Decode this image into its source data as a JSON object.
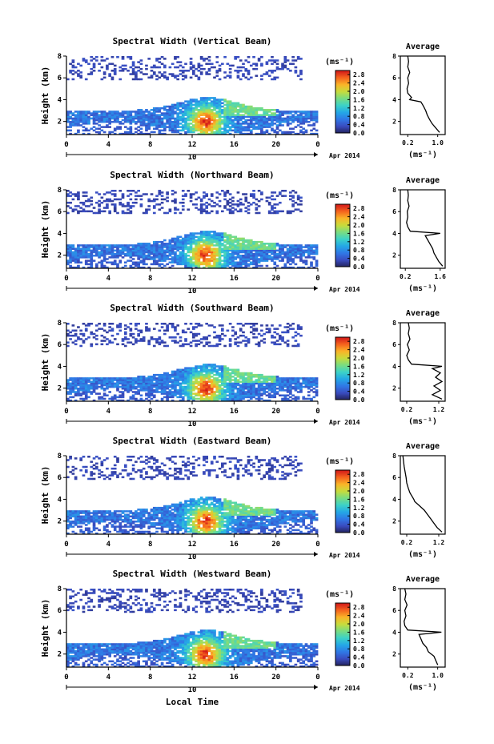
{
  "figure": {
    "date_label": "Apr 2014",
    "day_label": "10",
    "x_axis_title": "Local Time",
    "colorbar_unit": "(ms⁻¹)",
    "colorbar_ticks": [
      "0.0",
      "0.4",
      "0.8",
      "1.2",
      "1.6",
      "2.0",
      "2.4",
      "2.8"
    ],
    "average_title": "Average",
    "average_unit": "(ms⁻¹)"
  },
  "chart_data": [
    {
      "type": "heatmap",
      "title": "Spectral Width (Vertical Beam)",
      "ylabel": "Height (km)",
      "x_ticks": [
        "0",
        "4",
        "8",
        "12",
        "16",
        "20",
        "0"
      ],
      "y_ticks": [
        "2",
        "4",
        "6",
        "8"
      ],
      "xlim": [
        0,
        24
      ],
      "ylim": [
        0.8,
        8
      ],
      "colorbar_range": [
        0,
        3.0
      ],
      "average_profile": {
        "xlabel": "(ms⁻¹)",
        "x_ticks": [
          "0.2",
          "1.0"
        ],
        "y_ticks": [
          "2",
          "4",
          "6",
          "8"
        ],
        "xlim": [
          0,
          1.2
        ],
        "ylim": [
          0.8,
          8
        ],
        "height": [
          1.0,
          1.4,
          1.8,
          2.2,
          2.6,
          3.0,
          3.4,
          3.8,
          4.0,
          4.2,
          4.6,
          5.0,
          5.5,
          6.0,
          6.5,
          7.0,
          7.5,
          8.0
        ],
        "width": [
          1.05,
          0.95,
          0.85,
          0.78,
          0.72,
          0.68,
          0.62,
          0.55,
          0.25,
          0.3,
          0.2,
          0.18,
          0.22,
          0.2,
          0.25,
          0.2,
          0.22,
          0.2
        ]
      }
    },
    {
      "type": "heatmap",
      "title": "Spectral Width (Northward Beam)",
      "ylabel": "Height (km)",
      "x_ticks": [
        "0",
        "4",
        "8",
        "12",
        "16",
        "20",
        "0"
      ],
      "y_ticks": [
        "2",
        "4",
        "6",
        "8"
      ],
      "xlim": [
        0,
        24
      ],
      "ylim": [
        0.8,
        8
      ],
      "colorbar_range": [
        0,
        3.0
      ],
      "average_profile": {
        "xlabel": "(ms⁻¹)",
        "x_ticks": [
          "0.2",
          "1.6"
        ],
        "y_ticks": [
          "2",
          "4",
          "6",
          "8"
        ],
        "xlim": [
          0,
          1.8
        ],
        "ylim": [
          0.8,
          8
        ],
        "height": [
          1.0,
          1.4,
          1.8,
          2.2,
          2.6,
          3.0,
          3.4,
          3.8,
          4.0,
          4.2,
          4.6,
          5.0,
          5.5,
          6.0,
          6.5,
          7.0,
          7.5,
          8.0
        ],
        "width": [
          1.7,
          1.55,
          1.45,
          1.35,
          1.3,
          1.2,
          1.1,
          1.0,
          1.6,
          0.4,
          0.3,
          0.25,
          0.3,
          0.28,
          0.35,
          0.3,
          0.32,
          0.3
        ]
      }
    },
    {
      "type": "heatmap",
      "title": "Spectral Width (Southward Beam)",
      "ylabel": "Height (km)",
      "x_ticks": [
        "0",
        "4",
        "8",
        "12",
        "16",
        "20",
        "0"
      ],
      "y_ticks": [
        "2",
        "4",
        "6",
        "8"
      ],
      "xlim": [
        0,
        24
      ],
      "ylim": [
        0.8,
        8
      ],
      "colorbar_range": [
        0,
        3.0
      ],
      "average_profile": {
        "xlabel": "(ms⁻¹)",
        "x_ticks": [
          "0.2",
          "1.2"
        ],
        "y_ticks": [
          "2",
          "4",
          "6",
          "8"
        ],
        "xlim": [
          0,
          1.4
        ],
        "ylim": [
          0.8,
          8
        ],
        "height": [
          1.0,
          1.4,
          1.8,
          2.2,
          2.6,
          3.0,
          3.4,
          3.8,
          4.0,
          4.2,
          4.6,
          5.0,
          5.5,
          6.0,
          6.5,
          7.0,
          7.5,
          8.0
        ],
        "width": [
          1.3,
          1.0,
          1.25,
          1.05,
          1.3,
          1.1,
          1.25,
          1.0,
          1.3,
          0.35,
          0.25,
          0.2,
          0.28,
          0.22,
          0.3,
          0.25,
          0.28,
          0.25
        ]
      }
    },
    {
      "type": "heatmap",
      "title": "Spectral Width (Eastward Beam)",
      "ylabel": "Height (km)",
      "x_ticks": [
        "0",
        "4",
        "8",
        "12",
        "16",
        "20",
        "0"
      ],
      "y_ticks": [
        "2",
        "4",
        "6",
        "8"
      ],
      "xlim": [
        0,
        24
      ],
      "ylim": [
        0.8,
        8
      ],
      "colorbar_range": [
        0,
        3.0
      ],
      "average_profile": {
        "xlabel": "(ms⁻¹)",
        "x_ticks": [
          "0.2",
          "1.2"
        ],
        "y_ticks": [
          "2",
          "4",
          "6",
          "8"
        ],
        "xlim": [
          0,
          1.4
        ],
        "ylim": [
          0.8,
          8
        ],
        "height": [
          1.0,
          1.4,
          1.8,
          2.2,
          2.6,
          3.0,
          3.4,
          3.8,
          4.0,
          4.2,
          4.6,
          5.0,
          5.5,
          6.0,
          6.5,
          7.0,
          7.5,
          8.0
        ],
        "width": [
          1.3,
          1.15,
          1.05,
          0.95,
          0.85,
          0.75,
          0.6,
          0.45,
          0.42,
          0.38,
          0.3,
          0.25,
          0.2,
          0.18,
          0.15,
          0.12,
          0.1,
          0.08
        ]
      }
    },
    {
      "type": "heatmap",
      "title": "Spectral Width (Westward Beam)",
      "ylabel": "Height (km)",
      "x_ticks": [
        "0",
        "4",
        "8",
        "12",
        "16",
        "20",
        "0"
      ],
      "y_ticks": [
        "2",
        "4",
        "6",
        "8"
      ],
      "xlim": [
        0,
        24
      ],
      "ylim": [
        0.8,
        8
      ],
      "colorbar_range": [
        0,
        3.0
      ],
      "average_profile": {
        "xlabel": "(ms⁻¹)",
        "x_ticks": [
          "0.2",
          "1.0"
        ],
        "y_ticks": [
          "2",
          "4",
          "6",
          "8"
        ],
        "xlim": [
          0,
          1.2
        ],
        "ylim": [
          0.8,
          8
        ],
        "height": [
          1.0,
          1.4,
          1.8,
          2.2,
          2.6,
          3.0,
          3.4,
          3.8,
          4.0,
          4.2,
          4.6,
          5.0,
          5.5,
          6.0,
          6.5,
          7.0,
          7.5,
          8.0
        ],
        "width": [
          1.0,
          0.95,
          0.9,
          0.75,
          0.7,
          0.6,
          0.55,
          0.5,
          1.1,
          0.2,
          0.12,
          0.1,
          0.15,
          0.12,
          0.18,
          0.12,
          0.15,
          0.12
        ]
      }
    }
  ]
}
